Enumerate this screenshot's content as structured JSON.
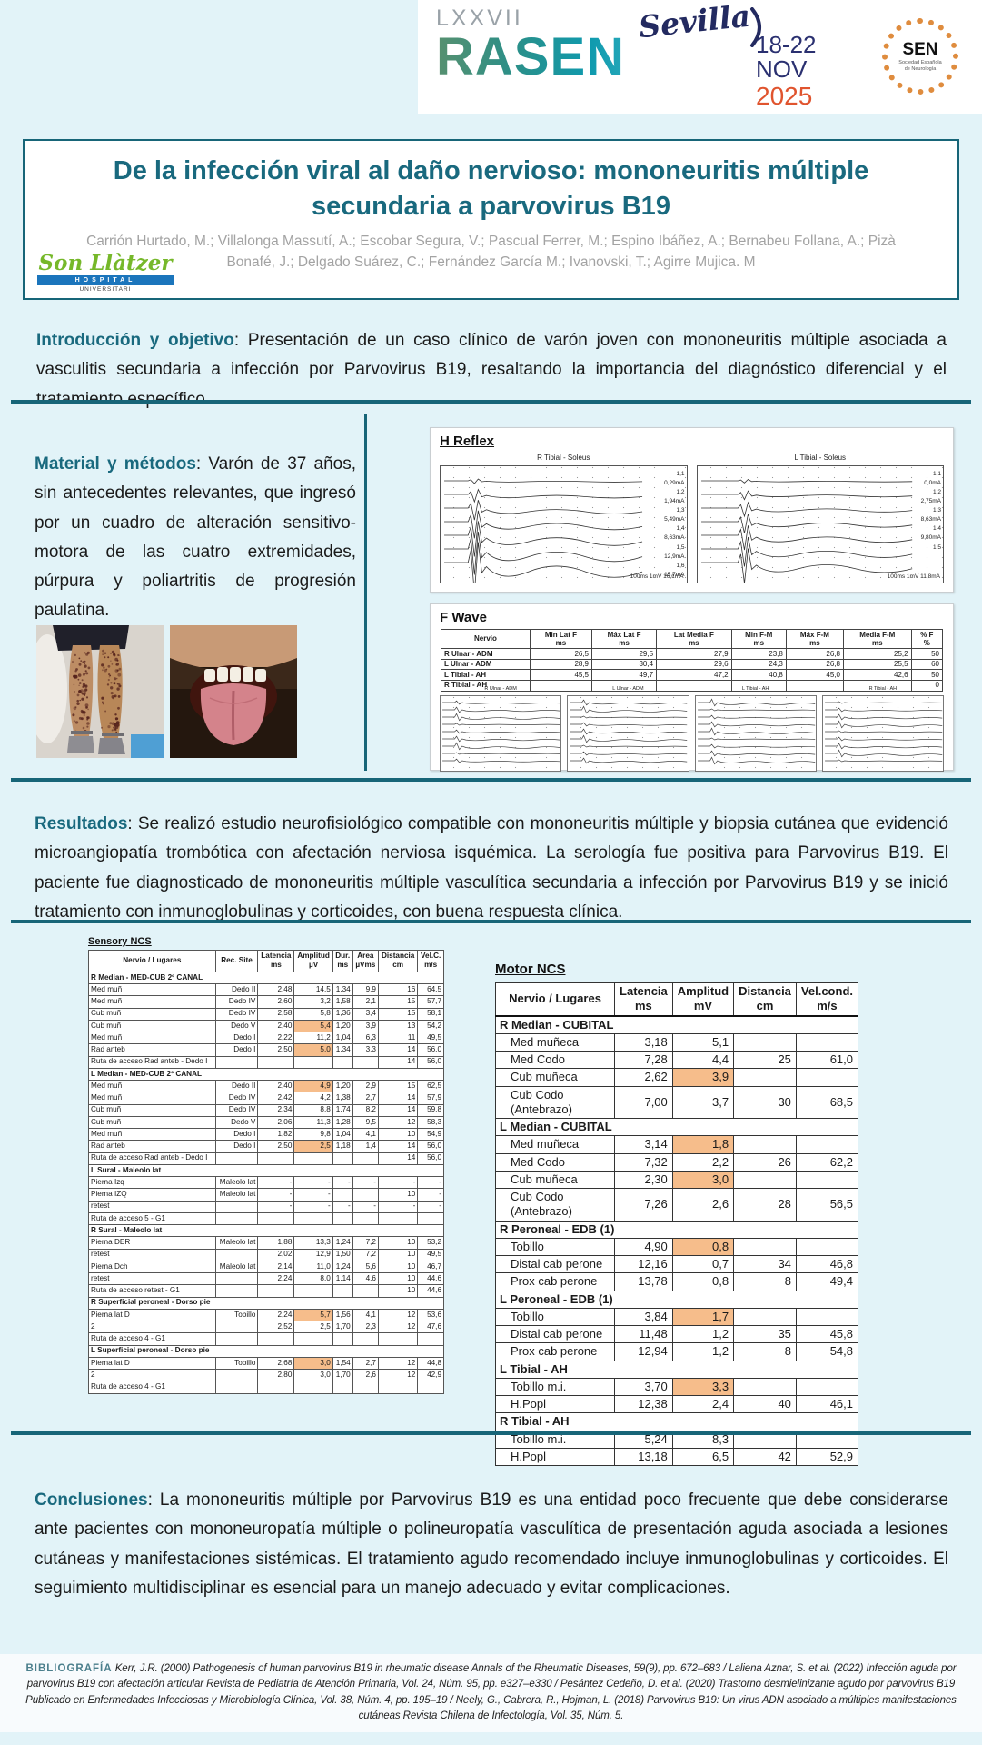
{
  "colors": {
    "teal": "#19697e",
    "line": "#176578",
    "bg": "#e2f3f8",
    "hl": "#f6bd8b",
    "navy": "#232a60",
    "orange": "#e0542e",
    "green": "#76b82a",
    "authors": "#a3a3a3",
    "bibbg": "#f8fbfd"
  },
  "header": {
    "congress_edition": "LXXVII",
    "congress_acronym": "RASEN",
    "city": "Sevilla",
    "dates": "18-22",
    "month": "NOV",
    "year": "2025",
    "sen_acronym": "SEN",
    "sen_subtitle": "Sociedad Española de Neurología"
  },
  "title_block": {
    "title_line1": "De la infección viral al daño nervioso: mononeuritis múltiple",
    "title_line2": "secundaria a parvovirus B19",
    "authors_line1": "Carrión Hurtado, M.; Villalonga Massutí, A.; Escobar Segura, V.; Pascual Ferrer, M.; Espino Ibáñez, A.; Bernabeu Follana, A.; Pizà",
    "authors_line2": "Bonafé, J.; Delgado Suárez, C.; Fernández García M.; Ivanovski, T.;  Agirre Mujica. M",
    "hospital": {
      "script": "Son Llàtzer",
      "bar": "HOSPITAL",
      "sub": "UNIVERSITARI"
    }
  },
  "sections": {
    "intro": {
      "heading": "Introducción y objetivo",
      "text": ": Presentación de un caso clínico de varón joven con mononeuritis múltiple asociada a vasculitis secundaria a infección por Parvovirus B19, resaltando la importancia del diagnóstico diferencial y el tratamiento específico."
    },
    "methods": {
      "heading": "Material y métodos",
      "text": ": Varón de 37 años, sin antecedentes relevantes, que ingresó por un cuadro de alteración sensitivo-motora de las cuatro extremidades, púrpura y poliartritis de progresión paulatina."
    },
    "results": {
      "heading": "Resultados",
      "text": ": Se realizó estudio neurofisiológico compatible con mononeuritis múltiple y biopsia cutánea que evidenció microangiopatía trombótica con afectación nerviosa isquémica. La serología fue positiva para Parvovirus B19. El paciente fue diagnosticado de mononeuritis múltiple vasculítica secundaria a infección por Parvovirus B19 y se inició tratamiento con inmunoglobulinas y corticoides, con buena respuesta clínica."
    },
    "conclusions": {
      "heading": "Conclusiones",
      "text": ": La mononeuritis múltiple por Parvovirus B19 es una entidad poco frecuente que debe considerarse ante pacientes con mononeuropatía múltiple o polineuropatía vasculítica de presentación aguda asociada a lesiones cutáneas y manifestaciones sistémicas. El tratamiento agudo recomendado incluye inmunoglobulinas y corticoides. El seguimiento multidisciplinar es esencial para un manejo adecuado y evitar complicaciones."
    }
  },
  "h_reflex": {
    "title": "H Reflex",
    "left_title": "R Tibial - Soleus",
    "right_title": "L Tibial - Soleus",
    "left_labels": [
      "1,1",
      "0,29mA",
      "1,2",
      "1,94mA",
      "1,3",
      "5,49mA",
      "1,4",
      "8,63mA",
      "1,5",
      "12,9mA",
      "1,6",
      "15,7mA"
    ],
    "right_labels": [
      "1,1",
      "0,0mA",
      "1,2",
      "2,75mA",
      "1,3",
      "8,63mA",
      "1,4",
      "9,80mA",
      "1,5"
    ],
    "left_scale": "100ms 1mV 16,1mA",
    "right_scale": "100ms 1mV 11,8mA"
  },
  "f_wave": {
    "title": "F Wave",
    "headers": [
      "Nervio",
      "Min Lat F",
      "Máx Lat F",
      "Lat Media F",
      "Min F-M",
      "Máx F-M",
      "Media F-M",
      "% F"
    ],
    "units": [
      "",
      "ms",
      "ms",
      "ms",
      "ms",
      "ms",
      "ms",
      "%"
    ],
    "rows": [
      [
        "R Ulnar - ADM",
        "26,5",
        "29,5",
        "27,9",
        "23,8",
        "26,8",
        "25,2",
        "50"
      ],
      [
        "L Ulnar - ADM",
        "28,9",
        "30,4",
        "29,6",
        "24,3",
        "26,8",
        "25,5",
        "60"
      ],
      [
        "L Tibial - AH",
        "45,5",
        "49,7",
        "47,2",
        "40,8",
        "45,0",
        "42,6",
        "50"
      ],
      [
        "R Tibial - AH",
        "",
        "",
        "",
        "",
        "",
        "",
        "0"
      ]
    ],
    "trace_labels": [
      "R Ulnar - ADM",
      "L Ulnar - ADM",
      "L Tibial - AH",
      "R Tibial - AH"
    ]
  },
  "sensory_ncs": {
    "title": "Sensory NCS",
    "headers": [
      "Nervio / Lugares",
      "Rec. Site",
      "Latencia",
      "Amplitud",
      "Dur.",
      "Area",
      "Distancia",
      "Vel.C."
    ],
    "units": [
      "",
      "",
      "ms",
      "µV",
      "ms",
      "µVms",
      "cm",
      "m/s"
    ],
    "rows": [
      "§R Median - MED-CUB 2º CANAL",
      [
        "Med muñ",
        "Dedo II",
        "2,48",
        "14,5",
        "1,34",
        "9,9",
        "16",
        "64,5"
      ],
      [
        "Med muñ",
        "Dedo IV",
        "2,60",
        "3,2",
        "1,58",
        "2,1",
        "15",
        "57,7"
      ],
      [
        "Cub muñ",
        "Dedo IV",
        "2,58",
        "5,8",
        "1,36",
        "3,4",
        "15",
        "58,1"
      ],
      [
        "Cub muñ",
        "Dedo V",
        "2,40",
        "5,4*",
        "1,20",
        "3,9",
        "13",
        "54,2"
      ],
      [
        "Med muñ",
        "Dedo I",
        "2,22",
        "11,2",
        "1,04",
        "6,3",
        "11",
        "49,5"
      ],
      [
        "Rad anteb",
        "Dedo I",
        "2,50",
        "5,0*",
        "1,34",
        "3,3",
        "14",
        "56,0"
      ],
      [
        "Ruta de acceso Rad anteb - Dedo I",
        "",
        "",
        "",
        "",
        "",
        "14",
        "56,0"
      ],
      "§L Median - MED-CUB 2º CANAL",
      [
        "Med muñ",
        "Dedo II",
        "2,40",
        "4,9*",
        "1,20",
        "2,9",
        "15",
        "62,5"
      ],
      [
        "Med muñ",
        "Dedo IV",
        "2,42",
        "4,2",
        "1,38",
        "2,7",
        "14",
        "57,9"
      ],
      [
        "Cub muñ",
        "Dedo IV",
        "2,34",
        "8,8",
        "1,74",
        "8,2",
        "14",
        "59,8"
      ],
      [
        "Cub muñ",
        "Dedo V",
        "2,06",
        "11,3",
        "1,28",
        "9,5",
        "12",
        "58,3"
      ],
      [
        "Med muñ",
        "Dedo I",
        "1,82",
        "9,8",
        "1,04",
        "4,1",
        "10",
        "54,9"
      ],
      [
        "Rad anteb",
        "Dedo I",
        "2,50",
        "2,5*",
        "1,18",
        "1,4",
        "14",
        "56,0"
      ],
      [
        "Ruta de acceso Rad anteb - Dedo I",
        "",
        "",
        "",
        "",
        "",
        "14",
        "56,0"
      ],
      "§L Sural - Maleolo lat",
      [
        "Pierna Izq",
        "Maleolo lat",
        "-",
        "-",
        "-",
        "-",
        "-",
        "-"
      ],
      [
        "Pierna IZQ",
        "Maleolo lat",
        "-",
        "-",
        "",
        "",
        "10",
        "-"
      ],
      [
        "retest",
        "",
        "-",
        "-",
        "-",
        "-",
        "-",
        "-"
      ],
      [
        "Ruta de acceso 5 - G1",
        "",
        "",
        "",
        "",
        "",
        "",
        ""
      ],
      "§R Sural - Maleolo lat",
      [
        "Pierna DER",
        "Maleolo lat",
        "1,88",
        "13,3",
        "1,24",
        "7,2",
        "10",
        "53,2"
      ],
      [
        "retest",
        "",
        "2,02",
        "12,9",
        "1,50",
        "7,2",
        "10",
        "49,5"
      ],
      [
        "Pierna Dch",
        "Maleolo lat",
        "2,14",
        "11,0",
        "1,24",
        "5,6",
        "10",
        "46,7"
      ],
      [
        "retest",
        "",
        "2,24",
        "8,0",
        "1,14",
        "4,6",
        "10",
        "44,6"
      ],
      [
        "Ruta de acceso retest - G1",
        "",
        "",
        "",
        "",
        "",
        "10",
        "44,6"
      ],
      "§R Superficial peroneal - Dorso pie",
      [
        "Pierna lat D",
        "Tobillo",
        "2,24",
        "5,7*",
        "1,56",
        "4,1",
        "12",
        "53,6"
      ],
      [
        "2",
        "",
        "2,52",
        "2,5",
        "1,70",
        "2,3",
        "12",
        "47,6"
      ],
      [
        "Ruta de acceso 4 - G1",
        "",
        "",
        "",
        "",
        "",
        "",
        ""
      ],
      "§L Superficial peroneal - Dorso pie",
      [
        "Pierna lat D",
        "Tobillo",
        "2,68",
        "3,0*",
        "1,54",
        "2,7",
        "12",
        "44,8"
      ],
      [
        "2",
        "",
        "2,80",
        "3,0",
        "1,70",
        "2,6",
        "12",
        "42,9"
      ],
      [
        "Ruta de acceso 4 - G1",
        "",
        "",
        "",
        "",
        "",
        "",
        ""
      ]
    ]
  },
  "motor_ncs": {
    "title": "Motor NCS",
    "headers": [
      "Nervio / Lugares",
      "Latencia",
      "Amplitud",
      "Distancia",
      "Vel.cond."
    ],
    "units": [
      "",
      "ms",
      "mV",
      "cm",
      "m/s"
    ],
    "rows": [
      "§R Median - CUBITAL",
      [
        "Med muñeca",
        "3,18",
        "5,1",
        "",
        ""
      ],
      [
        "Med Codo",
        "7,28",
        "4,4",
        "25",
        "61,0"
      ],
      [
        "Cub muñeca",
        "2,62",
        "3,9*",
        "",
        ""
      ],
      [
        "Cub Codo (Antebrazo)",
        "7,00",
        "3,7",
        "30",
        "68,5"
      ],
      "§L Median - CUBITAL",
      [
        "Med muñeca",
        "3,14",
        "1,8*",
        "",
        ""
      ],
      [
        "Med Codo",
        "7,32",
        "2,2",
        "26",
        "62,2"
      ],
      [
        "Cub muñeca",
        "2,30",
        "3,0*",
        "",
        ""
      ],
      [
        "Cub Codo (Antebrazo)",
        "7,26",
        "2,6",
        "28",
        "56,5"
      ],
      "§R Peroneal - EDB (1)",
      [
        "Tobillo",
        "4,90",
        "0,8*",
        "",
        ""
      ],
      [
        "Distal cab perone",
        "12,16",
        "0,7",
        "34",
        "46,8"
      ],
      [
        "Prox cab perone",
        "13,78",
        "0,8",
        "8",
        "49,4"
      ],
      "§L Peroneal - EDB (1)",
      [
        "Tobillo",
        "3,84",
        "1,7*",
        "",
        ""
      ],
      [
        "Distal cab perone",
        "11,48",
        "1,2",
        "35",
        "45,8"
      ],
      [
        "Prox cab perone",
        "12,94",
        "1,2",
        "8",
        "54,8"
      ],
      "§L Tibial - AH",
      [
        "Tobillo m.i.",
        "3,70",
        "3,3*",
        "",
        ""
      ],
      [
        "H.Popl",
        "12,38",
        "2,4",
        "40",
        "46,1"
      ],
      "§R Tibial - AH",
      [
        "Tobillo m.i.",
        "5,24",
        "8,3",
        "",
        ""
      ],
      [
        "H.Popl",
        "13,18",
        "6,5",
        "42",
        "52,9"
      ]
    ]
  },
  "bibliography": {
    "label": "BIBLIOGRAFÍA",
    "text": "Kerr, J.R. (2000) Pathogenesis of human parvovirus B19 in rheumatic disease Annals of the Rheumatic Diseases, 59(9), pp. 672–683 / Laliena Aznar, S. et al. (2022) Infección aguda por parvovirus B19 con afectación articular Revista de Pediatría de Atención Primaria, Vol. 24, Núm. 95, pp. e327–e330 / Pesántez Cedeño, D. et al. (2020) Trastorno desmielinizante agudo por parvovirus B19 Publicado en Enfermedades Infecciosas y Microbiología Clínica, Vol. 38, Núm. 4, pp. 195–19 / Neely, G., Cabrera, R., Hojman, L. (2018) Parvovirus B19: Un virus ADN asociado a múltiples manifestaciones cutáneas Revista Chilena de Infectología, Vol. 35, Núm. 5."
  }
}
